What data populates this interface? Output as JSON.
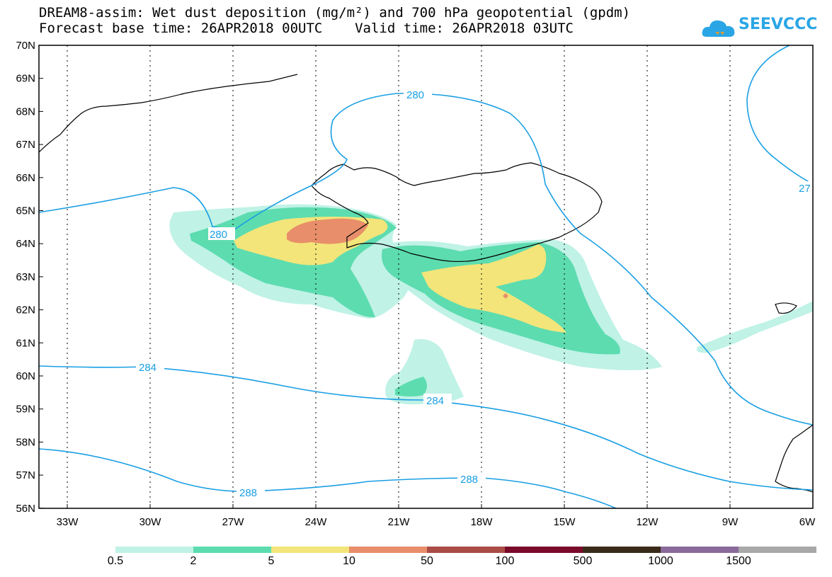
{
  "title": {
    "line1": "DREAM8-assim: Wet dust deposition (mg/m²) and 700 hPa geopotential (gpdm)",
    "line2": "Forecast base time: 26APR2018 00UTC    Valid time: 26APR2018 03UTC"
  },
  "logo": {
    "text": "SEEVCCC",
    "icon": "cloud-logo-icon",
    "color": "#2aa6e6"
  },
  "axes": {
    "lat_labels": [
      "70N",
      "69N",
      "68N",
      "67N",
      "66N",
      "65N",
      "64N",
      "63N",
      "62N",
      "61N",
      "60N",
      "59N",
      "58N",
      "57N",
      "56N"
    ],
    "lon_labels": [
      "33W",
      "30W",
      "27W",
      "24W",
      "21W",
      "18W",
      "15W",
      "12W",
      "9W",
      "6W"
    ]
  },
  "contours": {
    "color": "#1a9fe3",
    "labels": [
      "280",
      "280",
      "284",
      "284",
      "288",
      "288",
      "27"
    ]
  },
  "colorbar": {
    "labels": [
      "0.5",
      "2",
      "5",
      "10",
      "50",
      "100",
      "500",
      "1000",
      "1500"
    ],
    "colors": [
      "#c0f2e6",
      "#5ddcb0",
      "#f3e57a",
      "#e88e6a",
      "#a84c45",
      "#7a0a2a",
      "#3a2a1a",
      "#8a6a9a",
      "#a8a8a8"
    ]
  }
}
